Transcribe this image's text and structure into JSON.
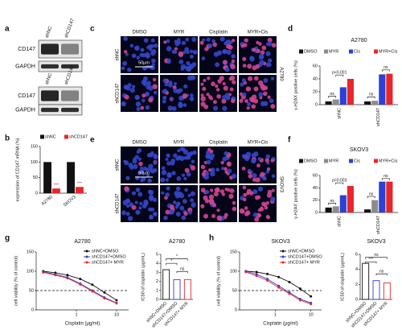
{
  "panels": [
    "a",
    "b",
    "c",
    "d",
    "e",
    "f",
    "g",
    "h"
  ],
  "blots": [
    {
      "lanes": [
        "shNC",
        "shCD147"
      ],
      "rows": [
        "CD147",
        "GAPDH"
      ]
    },
    {
      "lanes": [
        "shNC",
        "shCD147"
      ],
      "rows": [
        "CD147",
        "GAPDH"
      ]
    }
  ],
  "microscopy": [
    {
      "columns": [
        "DMSO",
        "MYR",
        "Cisplatin",
        "MYR+Cis"
      ],
      "rows": [
        "shNC",
        "shCD147"
      ],
      "cell_line": "A2780",
      "scale_bar": "50μm"
    },
    {
      "columns": [
        "DMSO",
        "MYR",
        "Cisplatin",
        "MYR+Cis"
      ],
      "rows": [
        "shNC",
        "shCD147"
      ],
      "cell_line": "SKOV3",
      "scale_bar": "50μm"
    }
  ],
  "chart_data": [
    {
      "type": "bar",
      "y_label": "expression of CD147 mRNA  (%)",
      "categories": [
        "A2780",
        "SKOV3"
      ],
      "series": [
        {
          "name": "shNC",
          "color": "#111111",
          "values": [
            100,
            100
          ]
        },
        {
          "name": "shCD147",
          "color": "#e8262b",
          "values": [
            15,
            20
          ]
        }
      ],
      "ylim": [
        0,
        150
      ],
      "yticks": [
        0,
        50,
        100,
        150
      ],
      "annotations": [
        "***",
        "***"
      ]
    },
    {
      "type": "bar",
      "title": "A2780",
      "y_label": "γ-H2AX positive cells (%)",
      "categories": [
        "shNC",
        "shCD147"
      ],
      "series": [
        {
          "name": "DMSO",
          "color": "#111111",
          "values": [
            5,
            5
          ]
        },
        {
          "name": "MYR",
          "color": "#8c8c8c",
          "values": [
            8,
            6
          ]
        },
        {
          "name": "Cis",
          "color": "#2c3fd6",
          "values": [
            27,
            47
          ]
        },
        {
          "name": "MYR+Cis",
          "color": "#e8262b",
          "values": [
            40,
            48
          ]
        }
      ],
      "ylim": [
        0,
        60
      ],
      "yticks": [
        0,
        20,
        40,
        60
      ],
      "annotations": [
        "ns",
        "p<0.001",
        "ns",
        "ns"
      ]
    },
    {
      "type": "bar",
      "title": "SKOV3",
      "y_label": "γ-H2AX positive cells (%)",
      "categories": [
        "shNC",
        "shCD147"
      ],
      "series": [
        {
          "name": "DMSO",
          "color": "#111111",
          "values": [
            8,
            5
          ]
        },
        {
          "name": "MYR",
          "color": "#8c8c8c",
          "values": [
            10,
            20
          ]
        },
        {
          "name": "Cis",
          "color": "#2c3fd6",
          "values": [
            28,
            50
          ]
        },
        {
          "name": "MYR+Cis",
          "color": "#e8262b",
          "values": [
            43,
            50
          ]
        }
      ],
      "ylim": [
        0,
        60
      ],
      "yticks": [
        0,
        20,
        40,
        60
      ],
      "annotations": [
        "ns",
        "p=0.003",
        "ns",
        "ns"
      ]
    },
    {
      "type": "line",
      "title": "A2780",
      "x_label": "Cisplatin (μg/ml)",
      "y_label": "cell viability (% of control)",
      "log_x": true,
      "x": [
        0.15,
        0.3,
        0.6,
        1.25,
        2.5,
        5,
        10
      ],
      "series": [
        {
          "name": "shNC+DMSO",
          "color": "#111111",
          "values": [
            100,
            96,
            90,
            80,
            65,
            45,
            25
          ]
        },
        {
          "name": "shCD147+DMSO",
          "color": "#2c3fd6",
          "values": [
            98,
            92,
            84,
            68,
            50,
            32,
            18
          ]
        },
        {
          "name": "shCD147+ MYR",
          "color": "#e8262b",
          "values": [
            97,
            90,
            82,
            66,
            48,
            30,
            17
          ]
        }
      ],
      "xlim": [
        0.1,
        20
      ],
      "xticks": [
        1,
        10
      ],
      "ylim": [
        0,
        150
      ],
      "yticks": [
        0,
        50,
        100,
        150
      ],
      "hline": 50
    },
    {
      "type": "bar",
      "title": "A2780",
      "y_label": "IC50 of cisplatin (μg/mL)",
      "categories": [
        "shNC+DMSO",
        "shCD147+DMSO",
        "shCD147+ MYR"
      ],
      "values": [
        3.3,
        2.2,
        2.2
      ],
      "colors": [
        "#111111",
        "#2c3fd6",
        "#e8262b"
      ],
      "ylim": [
        0,
        5
      ],
      "yticks": [
        0,
        1,
        2,
        3,
        4,
        5
      ],
      "annotations": [
        "*",
        "*",
        "ns"
      ]
    },
    {
      "type": "line",
      "title": "SKOV3",
      "x_label": "Cisplatin (μg/ml)",
      "y_label": "cell viability (% of control)",
      "log_x": true,
      "x": [
        0.15,
        0.3,
        0.6,
        1.25,
        2.5,
        5,
        10
      ],
      "series": [
        {
          "name": "shNC+DMSO",
          "color": "#111111",
          "values": [
            100,
            98,
            93,
            85,
            72,
            55,
            35
          ]
        },
        {
          "name": "shCD147+DMSO",
          "color": "#2c3fd6",
          "values": [
            100,
            92,
            80,
            62,
            45,
            28,
            18
          ]
        },
        {
          "name": "shCD147+ MYR",
          "color": "#e8262b",
          "values": [
            98,
            88,
            76,
            58,
            42,
            25,
            15
          ]
        }
      ],
      "xlim": [
        0.1,
        20
      ],
      "xticks": [
        1,
        10
      ],
      "ylim": [
        0,
        150
      ],
      "yticks": [
        0,
        50,
        100,
        150
      ],
      "hline": 50
    },
    {
      "type": "bar",
      "title": "SKOV3",
      "y_label": "IC50 of cisplatin (μg/mL)",
      "categories": [
        "shNC+DMSO",
        "shCD147+DMSO",
        "shCD147+ MYR"
      ],
      "values": [
        4.8,
        2.5,
        2.2
      ],
      "colors": [
        "#111111",
        "#2c3fd6",
        "#e8262b"
      ],
      "ylim": [
        0,
        6
      ],
      "yticks": [
        0,
        2,
        4,
        6
      ],
      "annotations": [
        "***",
        "ns",
        "ns"
      ]
    }
  ]
}
